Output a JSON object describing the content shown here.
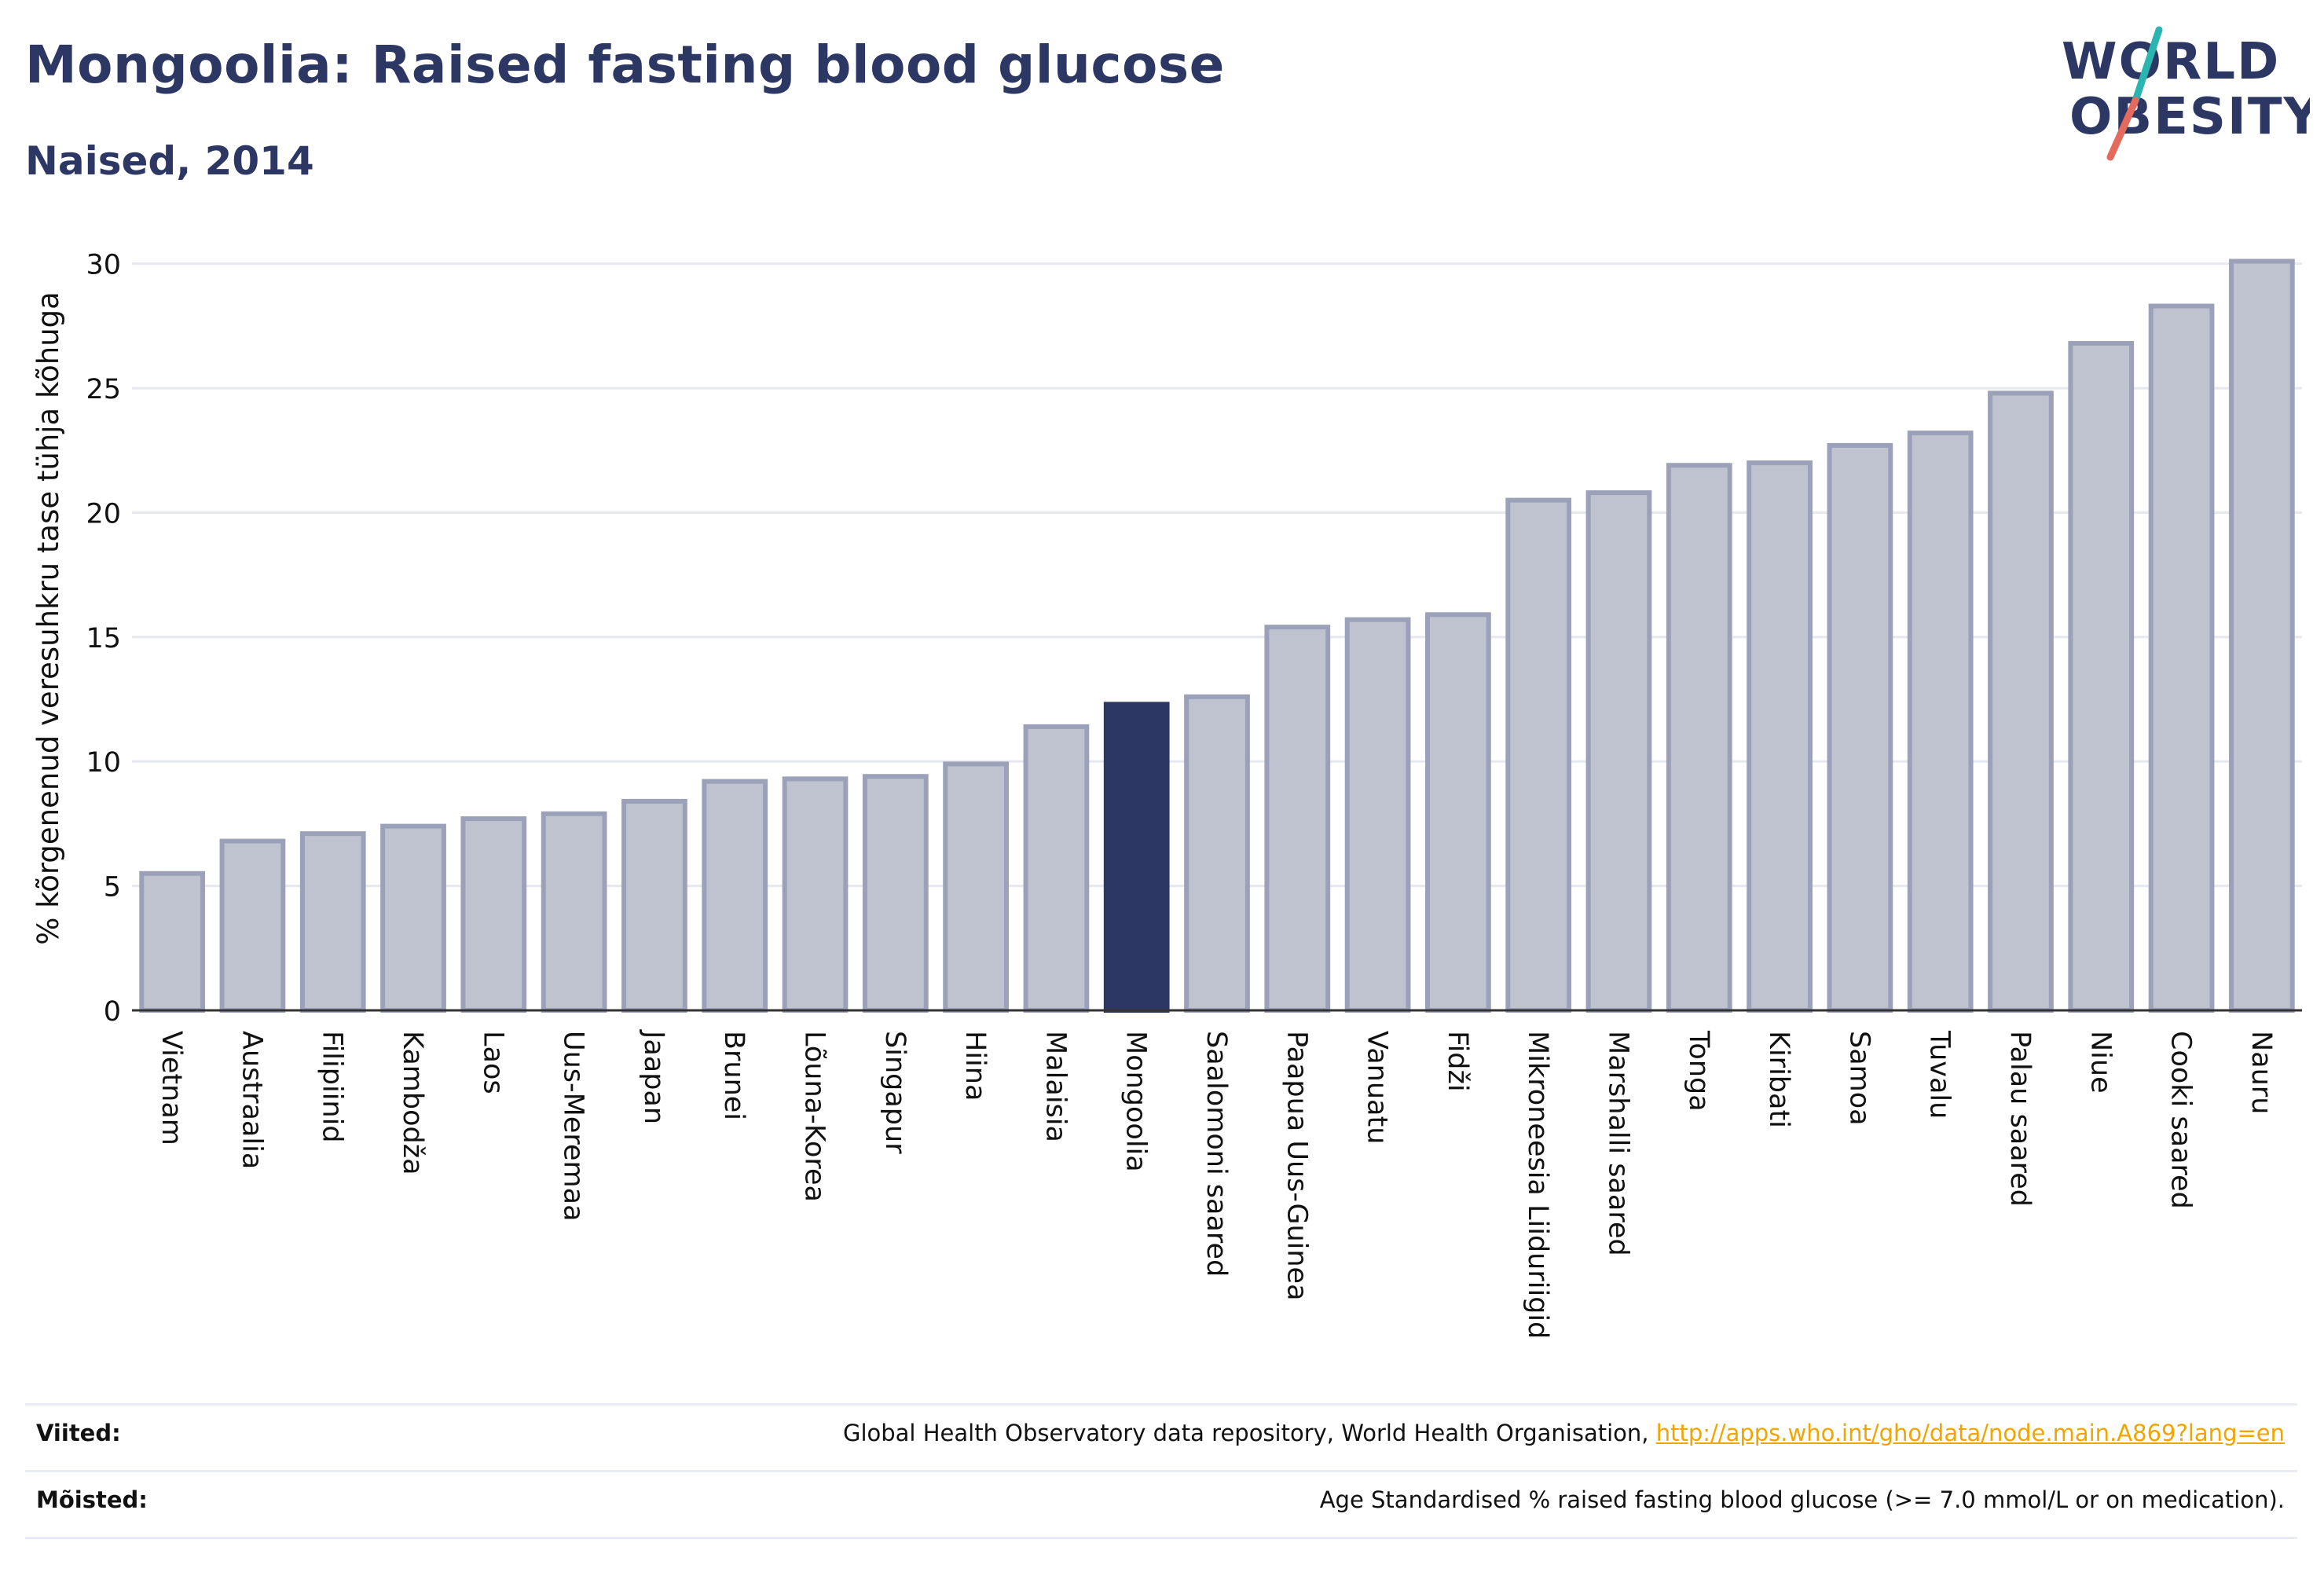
{
  "header": {
    "title": "Mongoolia: Raised fasting blood glucose",
    "subtitle": "Naised, 2014"
  },
  "logo": {
    "line1": "WORLD",
    "line2": "OBESITY",
    "accent_teal": "#2bb5b0",
    "accent_red": "#e36a5c",
    "text_color": "#2d3763"
  },
  "chart_data": {
    "type": "bar",
    "ylabel": "% kõrgenenud veresuhkru tase tühja kõhuga",
    "ylim": [
      0,
      31
    ],
    "yticks": [
      0,
      5,
      10,
      15,
      20,
      25,
      30
    ],
    "grid": true,
    "highlight": "Mongoolia",
    "colors": {
      "bar": "#bfc3d0",
      "bar_border": "#9aa1b8",
      "highlight": "#2d3763",
      "grid": "#e6e8ef",
      "axis": "#333333"
    },
    "categories": [
      "Vietnam",
      "Austraalia",
      "Filipiinid",
      "Kambodža",
      "Laos",
      "Uus-Meremaa",
      "Jaapan",
      "Brunei",
      "Lõuna-Korea",
      "Singapur",
      "Hiina",
      "Malaisia",
      "Mongoolia",
      "Saalomoni saared",
      "Paapua Uus-Guinea",
      "Vanuatu",
      "Fidži",
      "Mikroneesia Liiduriigid",
      "Marshalli saared",
      "Tonga",
      "Kiribati",
      "Samoa",
      "Tuvalu",
      "Palau saared",
      "Niue",
      "Cooki saared",
      "Nauru"
    ],
    "values": [
      5.5,
      6.8,
      7.1,
      7.4,
      7.7,
      7.9,
      8.4,
      9.2,
      9.3,
      9.4,
      9.9,
      11.4,
      12.3,
      12.6,
      15.4,
      15.7,
      15.9,
      20.5,
      20.8,
      21.9,
      22.0,
      22.7,
      23.2,
      24.8,
      26.8,
      28.3,
      30.1
    ]
  },
  "footer": {
    "sources_label": "Viited:",
    "sources_text": "Global Health Observatory data repository, World Health Organisation, ",
    "sources_link": "http://apps.who.int/gho/data/node.main.A869?lang=en",
    "definitions_label": "Mõisted:",
    "definitions_text": "Age Standardised % raised fasting blood glucose (>= 7.0 mmol/L or on medication)."
  }
}
